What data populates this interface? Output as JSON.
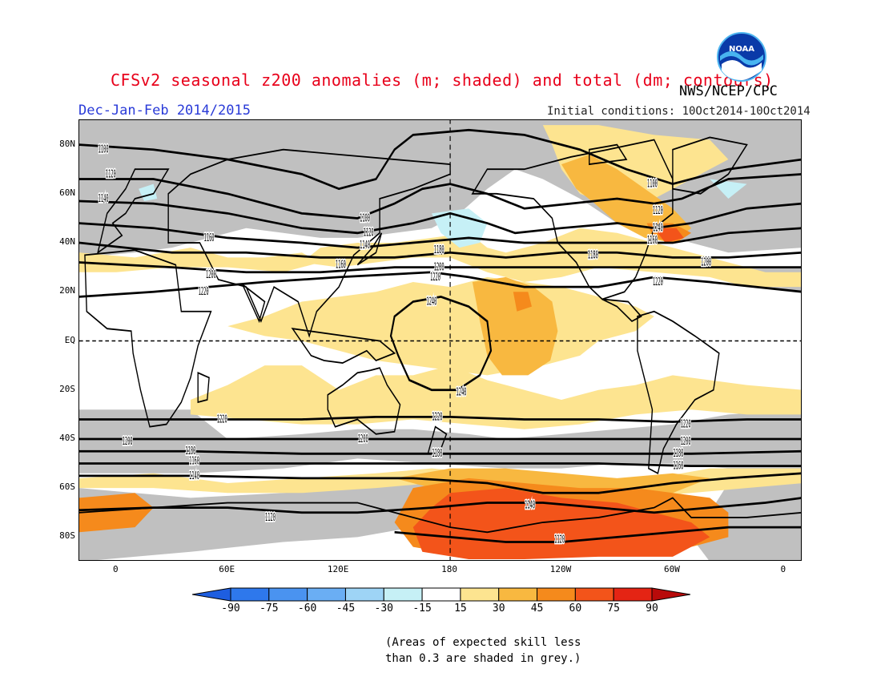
{
  "header": {
    "title": "CFSv2 seasonal z200 anomalies (m; shaded) and total (dm; contours)",
    "season": "Dec-Jan-Feb 2014/2015",
    "initial_conditions": "Initial conditions: 10Oct2014-10Oct2014",
    "agency": "NWS/NCEP/CPC",
    "logo_text": "NOAA"
  },
  "map": {
    "lat_labels": [
      "80N",
      "60N",
      "40N",
      "20N",
      "EQ",
      "20S",
      "40S",
      "60S",
      "80S"
    ],
    "lon_labels": [
      "0",
      "60E",
      "120E",
      "180",
      "120W",
      "60W",
      "0"
    ],
    "colors": {
      "skill_grey": "#c0c0c0",
      "land_outline": "#000000"
    },
    "contour_labels": [
      {
        "text": "1100",
        "lon": -7,
        "lat": 78
      },
      {
        "text": "1120",
        "lon": -3,
        "lat": 68
      },
      {
        "text": "1140",
        "lon": -7,
        "lat": 58
      },
      {
        "text": "1160",
        "lon": 50,
        "lat": 42
      },
      {
        "text": "1100",
        "lon": 134,
        "lat": 50
      },
      {
        "text": "1120",
        "lon": 136,
        "lat": 44
      },
      {
        "text": "1140",
        "lon": 134,
        "lat": 39
      },
      {
        "text": "1160",
        "lon": 121,
        "lat": 31
      },
      {
        "text": "1180",
        "lon": 174,
        "lat": 37
      },
      {
        "text": "1200",
        "lon": 174,
        "lat": 30
      },
      {
        "text": "1220",
        "lon": 172,
        "lat": 26
      },
      {
        "text": "1200",
        "lon": 51,
        "lat": 27
      },
      {
        "text": "1220",
        "lon": 47,
        "lat": 20
      },
      {
        "text": "1240",
        "lon": 170,
        "lat": 16
      },
      {
        "text": "1240",
        "lon": 186,
        "lat": -21
      },
      {
        "text": "1100",
        "lon": 289,
        "lat": 64
      },
      {
        "text": "1120",
        "lon": 292,
        "lat": 53
      },
      {
        "text": "1140",
        "lon": 292,
        "lat": 46
      },
      {
        "text": "1160",
        "lon": 289,
        "lat": 41
      },
      {
        "text": "1180",
        "lon": 257,
        "lat": 35
      },
      {
        "text": "1200",
        "lon": 318,
        "lat": 32
      },
      {
        "text": "1220",
        "lon": 292,
        "lat": 24
      },
      {
        "text": "1220",
        "lon": 57,
        "lat": -32
      },
      {
        "text": "1220",
        "lon": 173,
        "lat": -31
      },
      {
        "text": "1200",
        "lon": 6,
        "lat": -41
      },
      {
        "text": "1200",
        "lon": 133,
        "lat": -40
      },
      {
        "text": "1180",
        "lon": 40,
        "lat": -45
      },
      {
        "text": "1180",
        "lon": 173,
        "lat": -46
      },
      {
        "text": "1160",
        "lon": 42,
        "lat": -49
      },
      {
        "text": "1140",
        "lon": 42,
        "lat": -55
      },
      {
        "text": "1120",
        "lon": 83,
        "lat": -72
      },
      {
        "text": "1140",
        "lon": 223,
        "lat": -67
      },
      {
        "text": "1120",
        "lon": 239,
        "lat": -81
      },
      {
        "text": "1220",
        "lon": 307,
        "lat": -34
      },
      {
        "text": "1200",
        "lon": 307,
        "lat": -41
      },
      {
        "text": "1180",
        "lon": 303,
        "lat": -46
      },
      {
        "text": "1160",
        "lon": 303,
        "lat": -51
      }
    ]
  },
  "colorbar": {
    "labels": [
      "-90",
      "-75",
      "-60",
      "-45",
      "-30",
      "-15",
      "15",
      "30",
      "45",
      "60",
      "75",
      "90"
    ],
    "colors": [
      "#1e5ee0",
      "#2e78ec",
      "#4a93f0",
      "#6aaef4",
      "#9ed4f6",
      "#c6f0f6",
      "#ffffff",
      "#fde490",
      "#f8b840",
      "#f58a1c",
      "#f3541a",
      "#e42414",
      "#b80a0a"
    ]
  },
  "note": {
    "line1": "(Areas of expected skill less",
    "line2": "than 0.3 are shaded in grey.)"
  }
}
